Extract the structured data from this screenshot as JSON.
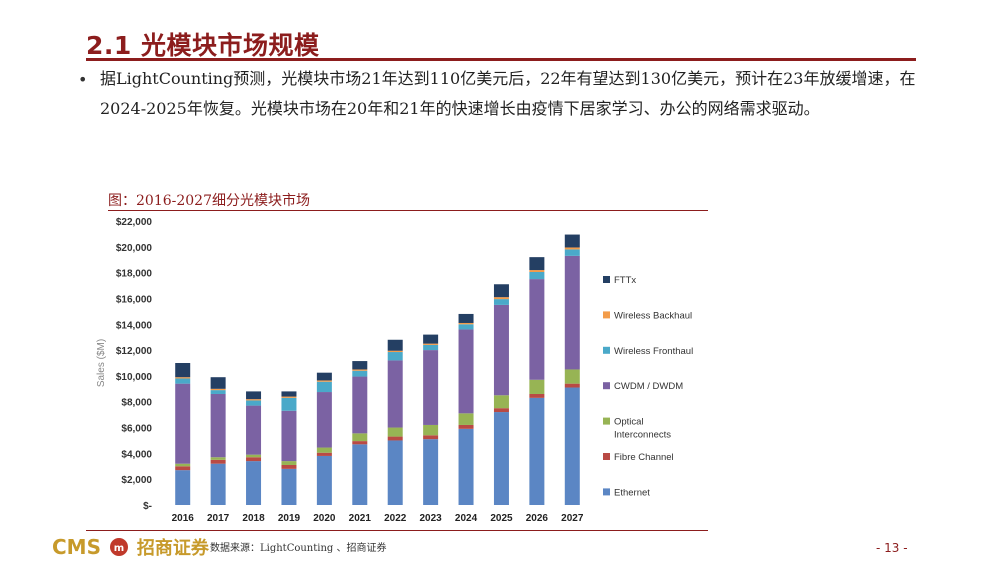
{
  "slide": {
    "title": "2.1 光模块市场规模",
    "bullet": "据LightCounting预测，光模块市场21年达到110亿美元后，22年有望达到130亿美元，预计在23年放缓增速，在2024-2025年恢复。光模块市场在20年和21年的快速增长由疫情下居家学习、办公的网络需求驱动。",
    "figure_caption": "图：2016-2027细分光模块市场",
    "source": "数据来源：LightCounting 、招商证券",
    "logo_text": "CMS",
    "logo_cn": "招商证券",
    "page_number": "- 13 -"
  },
  "chart_data": {
    "type": "bar",
    "stacked": true,
    "ylabel": "Sales ($M)",
    "ylim": [
      0,
      22000
    ],
    "yticks": [
      0,
      2000,
      4000,
      6000,
      8000,
      10000,
      12000,
      14000,
      16000,
      18000,
      20000,
      22000
    ],
    "ytick_labels": [
      "$-",
      "$2,000",
      "$4,000",
      "$6,000",
      "$8,000",
      "$10,000",
      "$12,000",
      "$14,000",
      "$16,000",
      "$18,000",
      "$20,000",
      "$22,000"
    ],
    "categories": [
      "2016",
      "2017",
      "2018",
      "2019",
      "2020",
      "2021",
      "2022",
      "2023",
      "2024",
      "2025",
      "2026",
      "2027"
    ],
    "legend_position": "right",
    "series": [
      {
        "name": "Ethernet",
        "color": "#5b86c4",
        "values": [
          2700,
          3200,
          3400,
          2800,
          3800,
          4700,
          5000,
          5100,
          5900,
          7200,
          8300,
          9100
        ]
      },
      {
        "name": "Fibre Channel",
        "color": "#b94a44",
        "values": [
          300,
          300,
          300,
          300,
          250,
          250,
          300,
          300,
          300,
          300,
          300,
          300
        ]
      },
      {
        "name": "Optical Interconnects",
        "color": "#97b454",
        "values": [
          200,
          200,
          200,
          300,
          400,
          600,
          700,
          800,
          900,
          1000,
          1100,
          1100
        ]
      },
      {
        "name": "CWDM / DWDM",
        "color": "#7b62a3",
        "values": [
          6200,
          4900,
          3800,
          3900,
          4300,
          4400,
          5200,
          5800,
          6500,
          7000,
          7800,
          8800
        ]
      },
      {
        "name": "Wireless Fronthaul",
        "color": "#4aa9c9",
        "values": [
          400,
          300,
          400,
          1000,
          800,
          450,
          650,
          400,
          400,
          450,
          550,
          500
        ]
      },
      {
        "name": "Wireless Backhaul",
        "color": "#f39c4a",
        "values": [
          100,
          100,
          100,
          100,
          100,
          100,
          100,
          100,
          100,
          150,
          150,
          150
        ]
      },
      {
        "name": "FTTx",
        "color": "#243f63",
        "values": [
          1100,
          900,
          600,
          400,
          600,
          650,
          850,
          700,
          700,
          1000,
          1000,
          1000
        ]
      }
    ],
    "legend_order": [
      "FTTx",
      "Wireless Backhaul",
      "Wireless Fronthaul",
      "CWDM / DWDM",
      "Optical Interconnects",
      "Fibre Channel",
      "Ethernet"
    ],
    "grid": false
  }
}
